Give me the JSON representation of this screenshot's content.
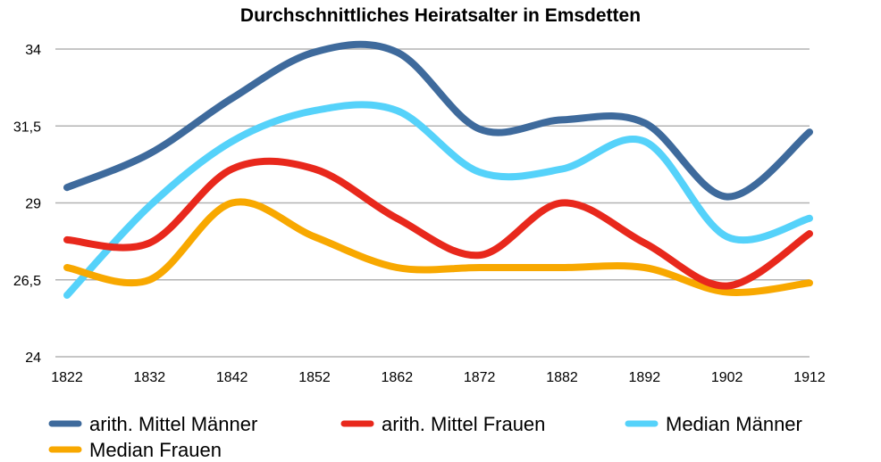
{
  "chart_data": {
    "type": "line",
    "title": "Durchschnittliches Heiratsalter in Emsdetten",
    "xlabel": "",
    "ylabel": "",
    "categories": [
      "1822",
      "1832",
      "1842",
      "1852",
      "1862",
      "1872",
      "1882",
      "1892",
      "1902",
      "1912"
    ],
    "ylim": [
      24,
      34
    ],
    "yticks": [
      24,
      26.5,
      29,
      31.5,
      34
    ],
    "ytick_labels": [
      "24",
      "26,5",
      "29",
      "31,5",
      "34"
    ],
    "grid": true,
    "legend_position": "bottom",
    "series": [
      {
        "name": "arith. Mittel Männer",
        "color": "#3e6a9c",
        "values": [
          29.5,
          30.6,
          32.4,
          33.9,
          33.9,
          31.4,
          31.7,
          31.6,
          29.2,
          31.3
        ]
      },
      {
        "name": "arith. Mittel Frauen",
        "color": "#e8281c",
        "values": [
          27.8,
          27.7,
          30.1,
          30.1,
          28.5,
          27.3,
          29.0,
          27.7,
          26.3,
          28.0
        ]
      },
      {
        "name": "Median Männer",
        "color": "#55d2fa",
        "values": [
          26.0,
          28.9,
          31.0,
          32.0,
          32.0,
          30.0,
          30.1,
          31.0,
          27.9,
          28.5
        ]
      },
      {
        "name": "Median Frauen",
        "color": "#f8a800",
        "values": [
          26.9,
          26.5,
          29.0,
          27.9,
          26.9,
          26.9,
          26.9,
          26.9,
          26.1,
          26.4
        ]
      }
    ]
  }
}
